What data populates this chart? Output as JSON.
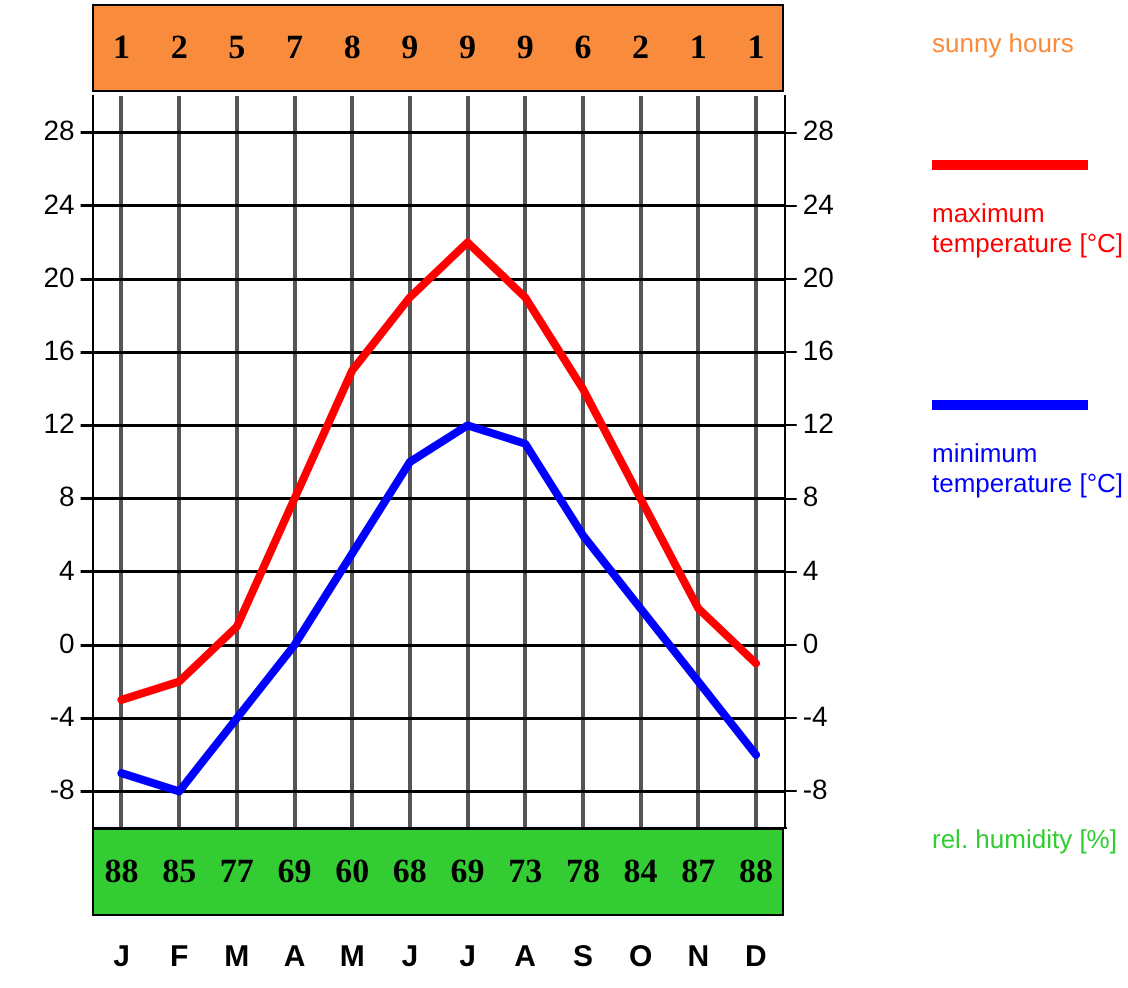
{
  "chart_data": [
    {
      "type": "other",
      "series": [
        {
          "name": "sunny hours",
          "color": "#f98c3c",
          "values": [
            1,
            2,
            5,
            7,
            8,
            9,
            9,
            9,
            6,
            2,
            1,
            1
          ]
        }
      ],
      "data_labels": true
    },
    {
      "type": "line",
      "categories": [
        "J",
        "F",
        "M",
        "A",
        "M",
        "J",
        "J",
        "A",
        "S",
        "O",
        "N",
        "D"
      ],
      "series": [
        {
          "name": "maximum temperature [°C]",
          "color": "#ff0000",
          "values": [
            -3,
            -2,
            1,
            8,
            15,
            19,
            22,
            19,
            14,
            8,
            2,
            -1
          ]
        },
        {
          "name": "minimum temperature [°C]",
          "color": "#0000ff",
          "values": [
            -7,
            -8,
            -4,
            0,
            5,
            10,
            12,
            11,
            6,
            2,
            -2,
            -6
          ]
        }
      ],
      "ylim": [
        -10,
        30
      ],
      "yticks": [
        -8,
        -4,
        0,
        4,
        8,
        12,
        16,
        20,
        24,
        28
      ],
      "y2lim": [
        -10,
        30
      ],
      "y2ticks": [
        -8,
        -4,
        0,
        4,
        8,
        12,
        16,
        20,
        24,
        28
      ],
      "grid": true,
      "legend": "right",
      "marker": "none",
      "line_style": "solid"
    },
    {
      "type": "other",
      "series": [
        {
          "name": "rel. humidity [%]",
          "color": "#33cc33",
          "values": [
            88,
            85,
            77,
            69,
            60,
            68,
            69,
            73,
            78,
            84,
            87,
            88
          ]
        }
      ],
      "data_labels": true
    }
  ]
}
